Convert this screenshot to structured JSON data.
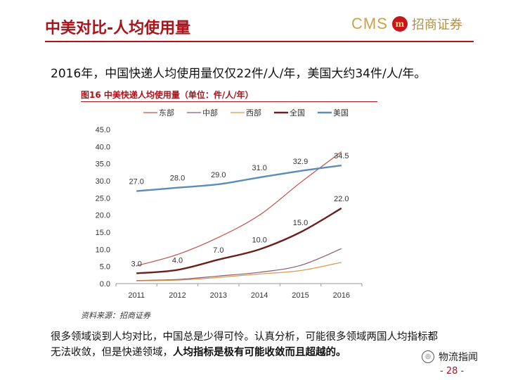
{
  "header": {
    "title": "中美对比-人均使用量",
    "logo_cms": "CMS",
    "logo_badge": "m",
    "logo_cn": "招商证券"
  },
  "lead": "2016年，中国快递人均使用量仅仅22件/人/年，美国大约34件/人/年。",
  "chart_header": "图16 中美快递人均使用量（单位：件/人/年）",
  "source": "资料来源：招商证券",
  "body": {
    "part1": "很多领域谈到人均对比，中国总是少得可怜。认真分析，可能很多领域两国人均指标都无法收敛，但是快递领域，",
    "part2": "人均指标是极有可能收敛而且超越的。"
  },
  "footer": {
    "wechat_label": "物流指闻",
    "page": "- 28 -"
  },
  "colors": {
    "accent": "#a8141b",
    "east": "#c0504d",
    "central": "#8b5a73",
    "west": "#d79a4c",
    "national": "#6b1f1f",
    "usa": "#5b8db8"
  },
  "chart_data": {
    "type": "line",
    "categories": [
      "2011",
      "2012",
      "2013",
      "2014",
      "2015",
      "2016"
    ],
    "ylim": [
      0,
      45
    ],
    "yticks": [
      "0.0",
      "5.0",
      "10.0",
      "15.0",
      "20.0",
      "25.0",
      "30.0",
      "35.0",
      "40.0",
      "45.0"
    ],
    "legend_position": "top",
    "grid": false,
    "series": [
      {
        "name": "东部",
        "color": "#c0504d",
        "width": 1.2,
        "values": [
          5.2,
          8.5,
          13.5,
          20.0,
          29.5,
          38.5
        ],
        "labels": []
      },
      {
        "name": "中部",
        "color": "#8b5a73",
        "width": 1.2,
        "values": [
          0.9,
          1.2,
          2.2,
          3.3,
          5.3,
          10.2
        ],
        "labels": []
      },
      {
        "name": "西部",
        "color": "#d79a4c",
        "width": 1.2,
        "values": [
          0.8,
          1.0,
          1.8,
          2.8,
          3.8,
          6.2
        ],
        "labels": []
      },
      {
        "name": "全国",
        "color": "#6b1f1f",
        "width": 2.4,
        "values": [
          3.0,
          4.0,
          7.0,
          10.0,
          15.0,
          22.0
        ],
        "labels": [
          "3.0",
          "4.0",
          "7.0",
          "10.0",
          "15.0",
          "22.0"
        ]
      },
      {
        "name": "美国",
        "color": "#5b8db8",
        "width": 2.4,
        "values": [
          27.0,
          28.0,
          29.0,
          31.0,
          32.9,
          34.5
        ],
        "labels": [
          "27.0",
          "28.0",
          "29.0",
          "31.0",
          "32.9",
          "34.5"
        ]
      }
    ]
  }
}
